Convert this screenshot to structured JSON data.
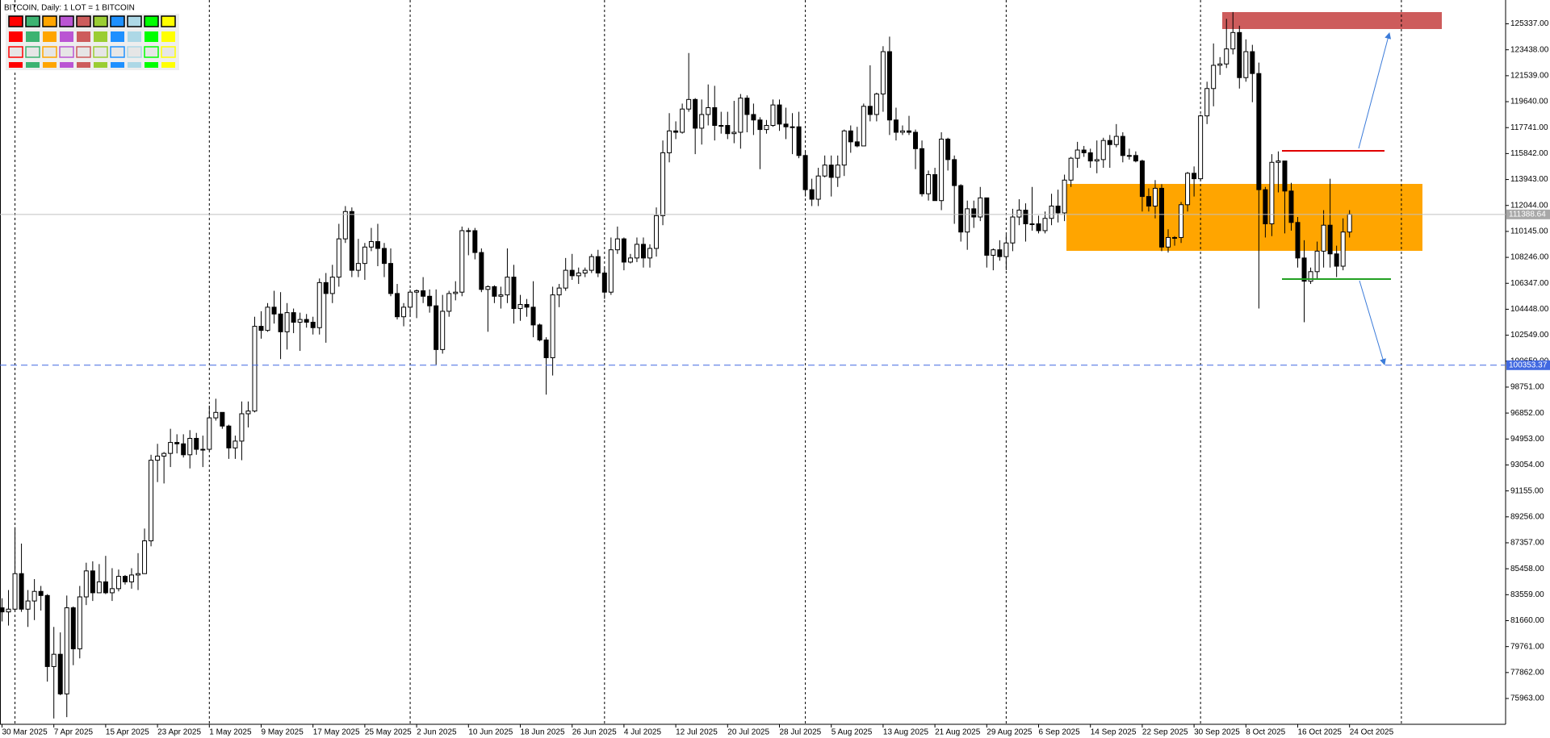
{
  "chart_data": {
    "type": "candlestick",
    "title": "BITCOIN, Daily:  1 LOT = 1 BITCOIN",
    "categories": [
      "30 Mar 2025",
      null,
      null,
      null,
      null,
      null,
      null,
      null,
      "7 Apr 2025",
      null,
      null,
      null,
      null,
      null,
      null,
      null,
      "15 Apr 2025",
      null,
      null,
      null,
      null,
      null,
      null,
      null,
      "23 Apr 2025",
      null,
      null,
      null,
      null,
      null,
      null,
      null,
      "1 May 2025",
      null,
      null,
      null,
      null,
      null,
      null,
      null,
      "9 May 2025",
      null,
      null,
      null,
      null,
      null,
      null,
      null,
      "17 May 2025",
      null,
      null,
      null,
      null,
      null,
      null,
      null,
      "25 May 2025",
      null,
      null,
      null,
      null,
      null,
      null,
      null,
      "2 Jun 2025",
      null,
      null,
      null,
      null,
      null,
      null,
      null,
      "10 Jun 2025",
      null,
      null,
      null,
      null,
      null,
      null,
      null,
      "18 Jun 2025",
      null,
      null,
      null,
      null,
      null,
      null,
      null,
      "26 Jun 2025",
      null,
      null,
      null,
      null,
      null,
      null,
      null,
      "4 Jul 2025",
      null,
      null,
      null,
      null,
      null,
      null,
      null,
      "12 Jul 2025",
      null,
      null,
      null,
      null,
      null,
      null,
      null,
      "20 Jul 2025",
      null,
      null,
      null,
      null,
      null,
      null,
      null,
      "28 Jul 2025",
      null,
      null,
      null,
      null,
      null,
      null,
      null,
      "5 Aug 2025",
      null,
      null,
      null,
      null,
      null,
      null,
      null,
      "13 Aug 2025",
      null,
      null,
      null,
      null,
      null,
      null,
      null,
      "21 Aug 2025",
      null,
      null,
      null,
      null,
      null,
      null,
      null,
      "29 Aug 2025",
      null,
      null,
      null,
      null,
      null,
      null,
      null,
      "6 Sep 2025",
      null,
      null,
      null,
      null,
      null,
      null,
      null,
      "14 Sep 2025",
      null,
      null,
      null,
      null,
      null,
      null,
      null,
      "22 Sep 2025",
      null,
      null,
      null,
      null,
      null,
      null,
      null,
      "30 Sep 2025",
      null,
      null,
      null,
      null,
      null,
      null,
      null,
      "8 Oct 2025",
      null,
      null,
      null,
      null,
      null,
      null,
      null,
      "16 Oct 2025",
      null,
      null,
      null,
      null,
      null,
      null,
      null,
      "24 Oct 2025"
    ],
    "open": [
      82600,
      82300,
      82500,
      85100,
      82500,
      83100,
      83800,
      83500,
      78300,
      79200,
      76300,
      82600,
      79600,
      83400,
      85300,
      83700,
      84500,
      83700,
      84000,
      84900,
      84500,
      85000,
      85100,
      87500,
      93400,
      93700,
      93900,
      94700,
      94600,
      93800,
      95000,
      94200,
      94200,
      96500,
      96900,
      95900,
      94300,
      94800,
      96800,
      97000,
      103200,
      102900,
      104600,
      104100,
      102800,
      104200,
      103500,
      103700,
      103500,
      103100,
      106400,
      105600,
      106800,
      109600,
      111600,
      107300,
      107800,
      109000,
      109400,
      108900,
      107800,
      105600,
      103900,
      104600,
      105700,
      105800,
      105400,
      104700,
      101500,
      104300,
      105600,
      105700,
      110200,
      110200,
      108600,
      105900,
      106100,
      105400,
      105500,
      106800,
      104500,
      104800,
      104600,
      103300,
      102200,
      100900,
      105500,
      106000,
      107300,
      106900,
      107100,
      107300,
      108300,
      107100,
      105700,
      108800,
      109600,
      107900,
      108200,
      109200,
      108200,
      108900,
      111300,
      115900,
      117500,
      117400,
      119100,
      119800,
      117700,
      118700,
      119200,
      117900,
      117900,
      117300,
      117400,
      119900,
      118700,
      118300,
      117600,
      117900,
      119400,
      118000,
      117800,
      117800,
      115700,
      113200,
      112500,
      114200,
      115000,
      114100,
      115000,
      117500,
      116700,
      116400,
      119300,
      118700,
      120200,
      123300,
      118300,
      117400,
      117500,
      117400,
      116200,
      112900,
      114300,
      112400,
      116900,
      115400,
      113500,
      110100,
      111800,
      111200,
      112600,
      108400,
      108800,
      108300,
      109300,
      111200,
      111700,
      110700,
      110700,
      110200,
      111100,
      112000,
      111500,
      113900,
      115500,
      116100,
      115900,
      115300,
      115400,
      116800,
      116500,
      117100,
      115700,
      115700,
      115300,
      112700,
      112000,
      113300,
      109000,
      109700,
      109700,
      112100,
      114400,
      114000,
      118600,
      120600,
      122300,
      122400,
      123500,
      124700,
      121400,
      123300,
      121700,
      113200,
      110700,
      115200,
      115300,
      113100,
      110800,
      108200,
      106500,
      107200,
      108700,
      110600,
      108500,
      107600,
      110100
    ],
    "high": [
      83300,
      83900,
      88500,
      87300,
      83900,
      84700,
      84200,
      83600,
      81200,
      80800,
      83500,
      82700,
      84200,
      85900,
      86000,
      85800,
      86400,
      85500,
      85400,
      85000,
      85500,
      86600,
      88400,
      93800,
      94600,
      94000,
      95700,
      95300,
      95300,
      95600,
      95400,
      95200,
      97400,
      97900,
      96900,
      96000,
      95200,
      97700,
      97700,
      103900,
      104300,
      104900,
      105800,
      105700,
      104900,
      104500,
      104200,
      104100,
      103900,
      106700,
      107100,
      107700,
      110700,
      112000,
      111900,
      109600,
      109300,
      110400,
      110700,
      109300,
      108900,
      106300,
      104900,
      105900,
      105900,
      106800,
      105900,
      105900,
      105500,
      105800,
      106500,
      110500,
      110400,
      110400,
      108900,
      106200,
      106200,
      106100,
      108900,
      107700,
      105500,
      105200,
      106500,
      103400,
      102400,
      106100,
      106300,
      108200,
      108500,
      107500,
      107500,
      108500,
      108800,
      107500,
      109700,
      110500,
      109700,
      108500,
      109700,
      109700,
      109200,
      111900,
      116800,
      118800,
      118200,
      119500,
      123200,
      119900,
      119800,
      120900,
      120800,
      118900,
      118900,
      119700,
      120200,
      120100,
      119500,
      118500,
      118300,
      119800,
      119800,
      119200,
      118800,
      118900,
      116000,
      114000,
      114800,
      115700,
      115700,
      115700,
      117600,
      117900,
      117800,
      119500,
      122300,
      120300,
      123700,
      124400,
      119200,
      117900,
      118600,
      117600,
      116800,
      114600,
      114800,
      117400,
      117000,
      115700,
      113600,
      112400,
      112400,
      113400,
      112600,
      108900,
      109500,
      109900,
      111800,
      112500,
      112200,
      113400,
      111300,
      111600,
      112900,
      113200,
      114300,
      115600,
      116700,
      116400,
      116200,
      116800,
      117000,
      117200,
      118000,
      117400,
      116200,
      116000,
      115400,
      113300,
      113900,
      113600,
      110300,
      109800,
      112300,
      114500,
      114900,
      118700,
      121100,
      123900,
      122900,
      125700,
      126200,
      125200,
      124200,
      123800,
      122500,
      113400,
      115800,
      116000,
      115300,
      113700,
      111200,
      109500,
      107500,
      109400,
      111700,
      114000,
      109100,
      111100,
      111700
    ],
    "low": [
      81600,
      81300,
      82300,
      82300,
      81200,
      81700,
      82400,
      77200,
      74500,
      76200,
      74600,
      78400,
      78900,
      82800,
      83100,
      83700,
      83600,
      83100,
      83800,
      84300,
      84000,
      83900,
      85100,
      87100,
      91800,
      91700,
      92900,
      93900,
      93600,
      92800,
      93800,
      92900,
      94100,
      96300,
      95700,
      93500,
      93500,
      93400,
      95800,
      96900,
      102300,
      102800,
      103400,
      100800,
      101500,
      102700,
      101400,
      103100,
      102600,
      102600,
      102000,
      104900,
      106100,
      109300,
      106800,
      106800,
      106600,
      108700,
      107600,
      106800,
      105400,
      103700,
      103200,
      103900,
      103800,
      104900,
      104200,
      100400,
      101200,
      103900,
      105100,
      105400,
      108400,
      108100,
      105700,
      102800,
      104900,
      104500,
      104900,
      103400,
      103600,
      103900,
      102400,
      102100,
      98200,
      99600,
      104600,
      105800,
      106600,
      106300,
      106800,
      107100,
      106800,
      105200,
      105500,
      108500,
      107300,
      107800,
      107900,
      107500,
      107500,
      108300,
      110600,
      115200,
      116900,
      117300,
      118900,
      115800,
      116500,
      117900,
      116800,
      117300,
      116900,
      116600,
      116200,
      117400,
      117200,
      114700,
      117300,
      117800,
      117500,
      116900,
      115800,
      115500,
      112700,
      112000,
      112000,
      114100,
      112700,
      113400,
      114200,
      115900,
      116300,
      116400,
      118200,
      118200,
      118900,
      117200,
      116800,
      117200,
      117200,
      114700,
      112700,
      112400,
      112400,
      111700,
      114600,
      110700,
      109400,
      108800,
      110400,
      110900,
      107500,
      107300,
      108000,
      107300,
      108700,
      110600,
      109400,
      110200,
      110000,
      110000,
      110600,
      110800,
      110900,
      113400,
      114800,
      115600,
      114800,
      114400,
      114800,
      114800,
      116300,
      115200,
      115400,
      115200,
      111600,
      111600,
      111100,
      108700,
      108600,
      109100,
      109300,
      111600,
      112700,
      113900,
      118000,
      119300,
      121600,
      122100,
      123100,
      120600,
      121100,
      119600,
      104500,
      109700,
      109800,
      113000,
      110000,
      110200,
      107500,
      103500,
      106300,
      106700,
      107500,
      107500,
      106800,
      107300,
      109700
    ],
    "close": [
      82300,
      82500,
      85100,
      82500,
      83100,
      83800,
      83500,
      78300,
      79200,
      76300,
      82600,
      79600,
      83400,
      85300,
      83700,
      84500,
      83700,
      84000,
      84900,
      84500,
      85000,
      85100,
      87500,
      93400,
      93700,
      93900,
      94700,
      94600,
      93800,
      95000,
      94200,
      94200,
      96500,
      96900,
      95900,
      94300,
      94800,
      96800,
      97000,
      103200,
      102900,
      104600,
      104100,
      102800,
      104200,
      103500,
      103700,
      103500,
      103100,
      106400,
      105600,
      106800,
      109600,
      111600,
      107300,
      107800,
      109000,
      109400,
      108900,
      107800,
      105600,
      103900,
      104600,
      105700,
      105800,
      105400,
      104700,
      101500,
      104300,
      105600,
      105700,
      110200,
      110200,
      108600,
      105900,
      106100,
      105400,
      105500,
      106800,
      104500,
      104800,
      104600,
      103300,
      102200,
      100900,
      105500,
      106000,
      107300,
      106900,
      107100,
      107300,
      108300,
      107100,
      105700,
      108800,
      109600,
      107900,
      108200,
      109200,
      108200,
      108900,
      111300,
      115900,
      117500,
      117400,
      119100,
      119800,
      117700,
      118700,
      119200,
      117900,
      117900,
      117300,
      117400,
      119900,
      118700,
      118300,
      117600,
      117900,
      119400,
      118000,
      117800,
      117800,
      115700,
      113200,
      112500,
      114200,
      115000,
      114100,
      115000,
      117500,
      116700,
      116400,
      119300,
      118700,
      120200,
      123300,
      118300,
      117400,
      117500,
      117400,
      116200,
      112900,
      114300,
      112400,
      116900,
      115400,
      113500,
      110100,
      111800,
      111200,
      112600,
      108400,
      108800,
      108300,
      109300,
      111200,
      111700,
      110700,
      110700,
      110200,
      111100,
      112000,
      111500,
      113900,
      115500,
      116100,
      115900,
      115300,
      115400,
      116800,
      116500,
      117100,
      115700,
      115700,
      115300,
      112700,
      112000,
      113300,
      109000,
      109700,
      109700,
      112100,
      114400,
      114000,
      118600,
      120600,
      122300,
      122400,
      123500,
      124700,
      121400,
      123300,
      121700,
      113200,
      110700,
      115200,
      115300,
      113100,
      110800,
      108200,
      106500,
      107200,
      108700,
      110600,
      108500,
      107600,
      110100,
      111400
    ],
    "up_color": "#ffffff",
    "down_color": "#000000",
    "ylim": [
      74075,
      127080
    ],
    "yticks": [
      {
        "value": 125337,
        "label": "125337.00"
      },
      {
        "value": 123438,
        "label": "123438.00"
      },
      {
        "value": 121539,
        "label": "121539.00"
      },
      {
        "value": 119640,
        "label": "119640.00"
      },
      {
        "value": 117741,
        "label": "117741.00"
      },
      {
        "value": 115842,
        "label": "115842.00"
      },
      {
        "value": 113943,
        "label": "113943.00"
      },
      {
        "value": 112044,
        "label": "112044.00"
      },
      {
        "value": 110145,
        "label": "110145.00"
      },
      {
        "value": 108246,
        "label": "108246.00"
      },
      {
        "value": 106347,
        "label": "106347.00"
      },
      {
        "value": 104448,
        "label": "104448.00"
      },
      {
        "value": 102549,
        "label": "102549.00"
      },
      {
        "value": 100650,
        "label": "100650.00"
      },
      {
        "value": 98751,
        "label": "98751.00"
      },
      {
        "value": 96852,
        "label": "96852.00"
      },
      {
        "value": 94953,
        "label": "94953.00"
      },
      {
        "value": 93054,
        "label": "93054.00"
      },
      {
        "value": 91155,
        "label": "91155.00"
      },
      {
        "value": 89256,
        "label": "89256.00"
      },
      {
        "value": 87357,
        "label": "87357.00"
      },
      {
        "value": 85458,
        "label": "85458.00"
      },
      {
        "value": 83559,
        "label": "83559.00"
      },
      {
        "value": 81660,
        "label": "81660.00"
      },
      {
        "value": 79761,
        "label": "79761.00"
      },
      {
        "value": 77862,
        "label": "77862.00"
      },
      {
        "value": 75963,
        "label": "75963.00"
      }
    ],
    "grid": false,
    "price_lines": [
      {
        "value": 111388.64,
        "color": "#c0c0c0",
        "label_bg": "#a8a8a8",
        "style": "solid"
      },
      {
        "value": 100353.37,
        "color": "#4169e1",
        "label_bg": "#4169e1",
        "style": "dashed"
      }
    ]
  }
}
